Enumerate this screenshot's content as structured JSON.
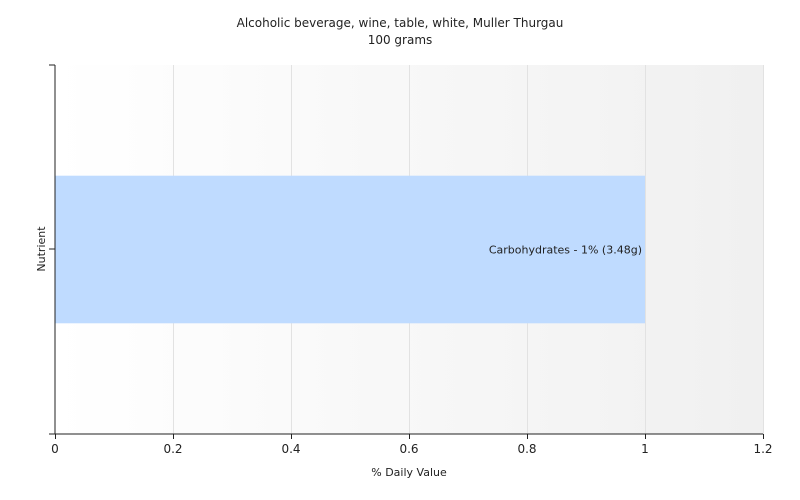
{
  "chart_data": {
    "type": "bar",
    "orientation": "horizontal",
    "title": "Alcoholic beverage, wine, table, white, Muller Thurgau",
    "subtitle": "100 grams",
    "xlabel": "% Daily Value",
    "ylabel": "Nutrient",
    "xlim": [
      0,
      1.2
    ],
    "xticks": [
      0,
      0.2,
      0.4,
      0.6,
      0.8,
      1,
      1.2
    ],
    "xtick_labels": [
      "0",
      "0.2",
      "0.4",
      "0.6",
      "0.8",
      "1",
      "1.2"
    ],
    "grid": true,
    "categories": [
      "Carbohydrates"
    ],
    "values": [
      1
    ],
    "data_labels": [
      "Carbohydrates - 1% (3.48g)"
    ],
    "bar_color": "#bfdbff"
  }
}
